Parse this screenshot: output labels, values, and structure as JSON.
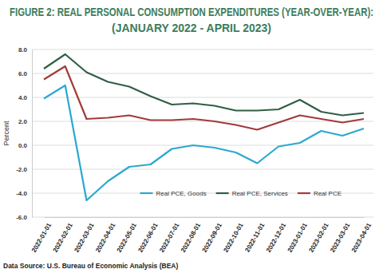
{
  "chart_data": {
    "type": "line",
    "title": "FIGURE 2: REAL PERSONAL CONSUMPTION EXPENDITURES (YEAR-OVER-YEAR):",
    "subtitle": "(JANUARY 2022 - APRIL 2023)",
    "y_label": "Percent",
    "annotations": [
      "Data Source: U.S. Bureau of Economic Analysis (BEA)"
    ],
    "categories": [
      "2022-01-01",
      "2022-02-01",
      "2022-03-01",
      "2022-04-01",
      "2022-05-01",
      "2022-06-01",
      "2022-07-01",
      "2022-08-01",
      "2022-09-01",
      "2022-10-01",
      "2022-11-01",
      "2022-12-01",
      "2023-01-01",
      "2023-02-01",
      "2023-03-01",
      "2023-04-01"
    ],
    "series": [
      {
        "name": "Real PCE, Goods",
        "color": "#2ba8d0",
        "values": [
          3.9,
          5.0,
          -4.6,
          -3.0,
          -1.8,
          -1.6,
          -0.3,
          0.0,
          -0.2,
          -0.6,
          -1.5,
          -0.1,
          0.2,
          1.2,
          0.8,
          1.4
        ]
      },
      {
        "name": "Real PCE, Services",
        "color": "#2f5f45",
        "values": [
          6.4,
          7.6,
          6.1,
          5.3,
          4.9,
          4.1,
          3.4,
          3.5,
          3.3,
          2.9,
          2.9,
          3.0,
          3.8,
          2.8,
          2.5,
          2.7
        ]
      },
      {
        "name": "Real PCE",
        "color": "#a33a3a",
        "values": [
          5.5,
          6.6,
          2.2,
          2.3,
          2.5,
          2.1,
          2.1,
          2.2,
          2.0,
          1.7,
          1.3,
          1.9,
          2.5,
          2.2,
          1.9,
          2.2
        ]
      }
    ],
    "ylim": [
      -6,
      8
    ],
    "yticks": [
      {
        "value": -6,
        "label": "-6.0"
      },
      {
        "value": -4,
        "label": "-4.0"
      },
      {
        "value": -2,
        "label": "-2.0"
      },
      {
        "value": 0,
        "label": "0.0"
      },
      {
        "value": 2,
        "label": "2.0"
      },
      {
        "value": 4,
        "label": "4.0"
      },
      {
        "value": 6,
        "label": "6.0"
      },
      {
        "value": 8,
        "label": "8.0"
      }
    ],
    "grid": true,
    "legend": "lower right"
  }
}
